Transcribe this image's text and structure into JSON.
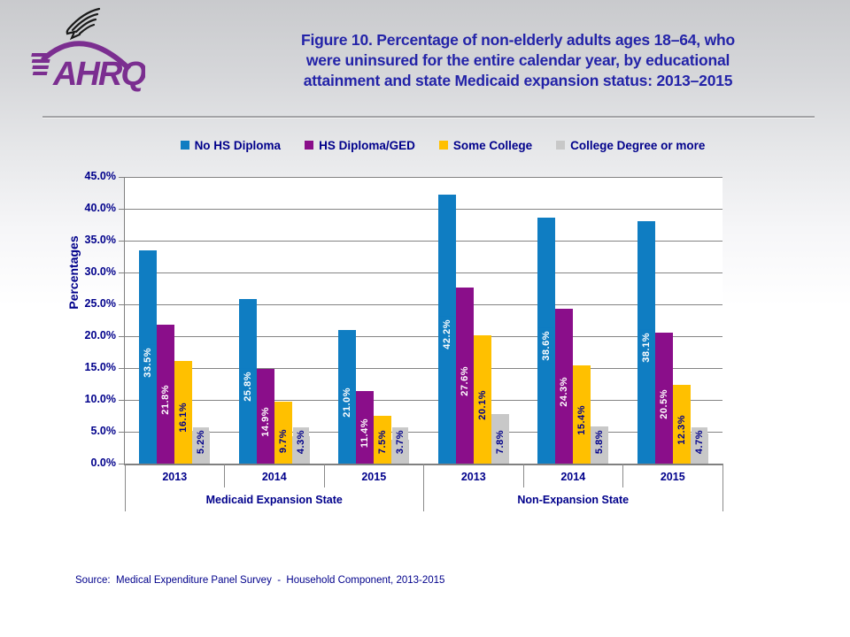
{
  "logo": {
    "org": "AHRQ",
    "eagle_icon": "hhs-eagle-icon",
    "brand_color": "#7b2e90"
  },
  "header": {
    "title_lines": [
      "Figure 10. Percentage of non-elderly adults ages 18–64, who",
      "were uninsured for the entire calendar year, by educational",
      "attainment and state Medicaid expansion status: 2013–2015"
    ]
  },
  "chart_data": {
    "type": "bar",
    "title": "Figure 10. Percentage of non-elderly adults ages 18–64, who were uninsured for the entire calendar year, by educational attainment and state Medicaid expansion status: 2013–2015",
    "ylabel": "Percentages",
    "ylim": [
      0,
      45
    ],
    "ytick_step": 5,
    "ytick_suffix": "%",
    "grid": "horizontal",
    "legend_position": "top",
    "categories": [
      "2013",
      "2014",
      "2015",
      "2013",
      "2014",
      "2015"
    ],
    "groups": [
      {
        "label": "Medicaid Expansion State",
        "span": [
          0,
          2
        ]
      },
      {
        "label": "Non-Expansion State",
        "span": [
          3,
          5
        ]
      }
    ],
    "series": [
      {
        "name": "No HS Diploma",
        "color": "#0f7dc2",
        "label_color": "#ffffff",
        "values": [
          33.5,
          25.8,
          21.0,
          42.2,
          38.6,
          38.1
        ]
      },
      {
        "name": "HS Diploma/GED",
        "color": "#8a0e8a",
        "label_color": "#ffffff",
        "values": [
          21.8,
          14.9,
          11.4,
          27.6,
          24.3,
          20.5
        ]
      },
      {
        "name": "Some College",
        "color": "#ffc000",
        "label_color": "#00008b",
        "values": [
          16.1,
          9.7,
          7.5,
          20.1,
          15.4,
          12.3
        ]
      },
      {
        "name": "College Degree or more",
        "color": "#c8c8c8",
        "label_color": "#00008b",
        "values": [
          5.2,
          4.3,
          3.7,
          7.8,
          5.8,
          4.7
        ]
      }
    ],
    "text_color": "#00008b"
  },
  "footer": {
    "source": "Source:  Medical Expenditure Panel Survey  -  Household Component, 2013-2015"
  }
}
